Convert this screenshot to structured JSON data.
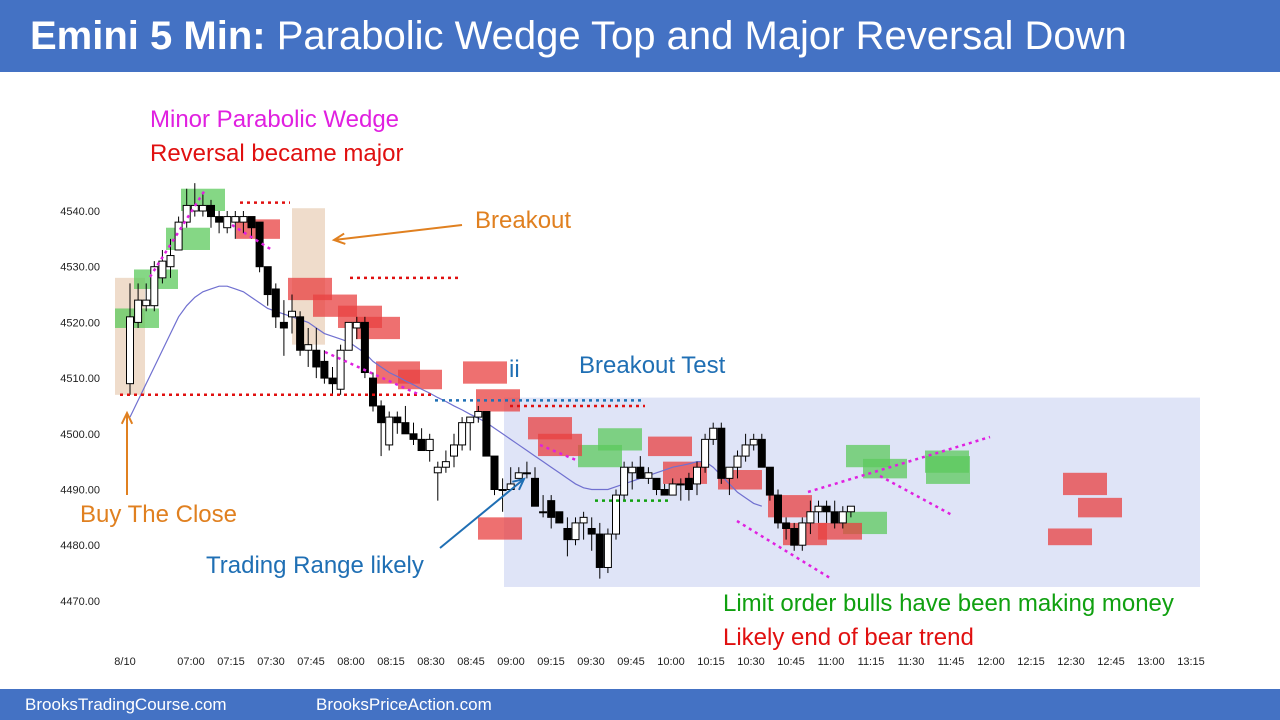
{
  "header": {
    "title_bold": "Emini 5 Min:",
    "title_rest": "Parabolic Wedge Top and Major Reversal Down",
    "bg_color": "#4472c4"
  },
  "footer": {
    "left": "BrooksTradingCourse.com",
    "right": "BrooksPriceAction.com"
  },
  "annotations": {
    "minor_wedge": "Minor Parabolic Wedge",
    "reversal_major": "Reversal became major",
    "breakout": "Breakout",
    "breakout_test": "Breakout Test",
    "ii": "ii",
    "buy_close": "Buy The Close",
    "trading_range": "Trading Range likely",
    "limit_bulls": "Limit order bulls have been making money",
    "end_bear": "Likely end of bear trend"
  },
  "colors": {
    "magenta": "#e020e0",
    "red": "#e01010",
    "orange": "#e08020",
    "blue": "#1f6fb4",
    "green": "#10a010",
    "ema": "#7070d0",
    "bull_bar_fill": "#ffffff",
    "bear_bar_fill": "#000000",
    "green_highlight": "#5cc95c",
    "red_highlight": "#e84040",
    "range_box": "#dfe4f7",
    "tan_box": "#efdccb"
  },
  "chart_data": {
    "type": "candlestick",
    "y_ticks": [
      "4540.00",
      "4530.00",
      "4520.00",
      "4510.00",
      "4500.00",
      "4490.00",
      "4480.00",
      "4470.00"
    ],
    "x_ticks": [
      "8/10",
      "07:00",
      "07:15",
      "07:30",
      "07:45",
      "08:00",
      "08:15",
      "08:30",
      "08:45",
      "09:00",
      "09:15",
      "09:30",
      "09:45",
      "10:00",
      "10:15",
      "10:30",
      "10:45",
      "11:00",
      "11:15",
      "11:30",
      "11:45",
      "12:00",
      "12:15",
      "12:30",
      "12:45",
      "13:00",
      "13:15"
    ],
    "ylim": [
      4468,
      4548
    ],
    "bars": [
      {
        "o": 4509,
        "h": 4527,
        "l": 4507,
        "c": 4521
      },
      {
        "o": 4520,
        "h": 4527,
        "l": 4519,
        "c": 4524
      },
      {
        "o": 4523,
        "h": 4527,
        "l": 4522,
        "c": 4524
      },
      {
        "o": 4523,
        "h": 4531,
        "l": 4522,
        "c": 4530
      },
      {
        "o": 4528,
        "h": 4533,
        "l": 4527,
        "c": 4531
      },
      {
        "o": 4530,
        "h": 4535,
        "l": 4528,
        "c": 4532
      },
      {
        "o": 4533,
        "h": 4539,
        "l": 4533,
        "c": 4538
      },
      {
        "o": 4538,
        "h": 4544,
        "l": 4537,
        "c": 4541
      },
      {
        "o": 4540,
        "h": 4545,
        "l": 4539,
        "c": 4541
      },
      {
        "o": 4540,
        "h": 4543,
        "l": 4539,
        "c": 4541
      },
      {
        "o": 4541,
        "h": 4542,
        "l": 4537,
        "c": 4539
      },
      {
        "o": 4539,
        "h": 4540,
        "l": 4536,
        "c": 4538
      },
      {
        "o": 4537,
        "h": 4540,
        "l": 4536,
        "c": 4539
      },
      {
        "o": 4538,
        "h": 4540,
        "l": 4535,
        "c": 4539
      },
      {
        "o": 4538,
        "h": 4540,
        "l": 4536,
        "c": 4539
      },
      {
        "o": 4539,
        "h": 4539,
        "l": 4535,
        "c": 4537
      },
      {
        "o": 4538,
        "h": 4538,
        "l": 4529,
        "c": 4530
      },
      {
        "o": 4530,
        "h": 4530,
        "l": 4523,
        "c": 4525
      },
      {
        "o": 4526,
        "h": 4527,
        "l": 4519,
        "c": 4521
      },
      {
        "o": 4520,
        "h": 4524,
        "l": 4514,
        "c": 4519
      },
      {
        "o": 4521,
        "h": 4525,
        "l": 4518,
        "c": 4522
      },
      {
        "o": 4521,
        "h": 4522,
        "l": 4514,
        "c": 4515
      },
      {
        "o": 4515,
        "h": 4519,
        "l": 4512,
        "c": 4516
      },
      {
        "o": 4515,
        "h": 4519,
        "l": 4510,
        "c": 4512
      },
      {
        "o": 4513,
        "h": 4515,
        "l": 4509,
        "c": 4510
      },
      {
        "o": 4510,
        "h": 4512,
        "l": 4507,
        "c": 4509
      },
      {
        "o": 4508,
        "h": 4516,
        "l": 4507,
        "c": 4515
      },
      {
        "o": 4515,
        "h": 4520,
        "l": 4515,
        "c": 4520
      },
      {
        "o": 4519,
        "h": 4521,
        "l": 4517,
        "c": 4520
      },
      {
        "o": 4520,
        "h": 4521,
        "l": 4510,
        "c": 4511
      },
      {
        "o": 4510,
        "h": 4511,
        "l": 4504,
        "c": 4505
      },
      {
        "o": 4505,
        "h": 4506,
        "l": 4496,
        "c": 4502
      },
      {
        "o": 4498,
        "h": 4504,
        "l": 4497,
        "c": 4503
      },
      {
        "o": 4503,
        "h": 4504,
        "l": 4500,
        "c": 4502
      },
      {
        "o": 4502,
        "h": 4505,
        "l": 4500,
        "c": 4500
      },
      {
        "o": 4500,
        "h": 4502,
        "l": 4498,
        "c": 4499
      },
      {
        "o": 4499,
        "h": 4501,
        "l": 4497,
        "c": 4497
      },
      {
        "o": 4497,
        "h": 4500,
        "l": 4495,
        "c": 4499
      },
      {
        "o": 4493,
        "h": 4495,
        "l": 4488,
        "c": 4494
      },
      {
        "o": 4494,
        "h": 4497,
        "l": 4493,
        "c": 4495
      },
      {
        "o": 4496,
        "h": 4500,
        "l": 4494,
        "c": 4498
      },
      {
        "o": 4498,
        "h": 4503,
        "l": 4497,
        "c": 4502
      },
      {
        "o": 4502,
        "h": 4503,
        "l": 4497,
        "c": 4503
      },
      {
        "o": 4503,
        "h": 4505,
        "l": 4502,
        "c": 4504
      },
      {
        "o": 4504,
        "h": 4504,
        "l": 4496,
        "c": 4496
      },
      {
        "o": 4496,
        "h": 4496,
        "l": 4489,
        "c": 4490
      },
      {
        "o": 4490,
        "h": 4492,
        "l": 4486,
        "c": 4490
      },
      {
        "o": 4490,
        "h": 4494,
        "l": 4490,
        "c": 4491
      },
      {
        "o": 4492,
        "h": 4494,
        "l": 4492,
        "c": 4493
      },
      {
        "o": 4493,
        "h": 4495,
        "l": 4492,
        "c": 4493
      },
      {
        "o": 4492,
        "h": 4494,
        "l": 4487,
        "c": 4487
      },
      {
        "o": 4486,
        "h": 4489,
        "l": 4485,
        "c": 4486
      },
      {
        "o": 4488,
        "h": 4489,
        "l": 4483,
        "c": 4485
      },
      {
        "o": 4486,
        "h": 4486,
        "l": 4484,
        "c": 4484
      },
      {
        "o": 4483,
        "h": 4485,
        "l": 4478,
        "c": 4481
      },
      {
        "o": 4481,
        "h": 4485,
        "l": 4480,
        "c": 4484
      },
      {
        "o": 4484,
        "h": 4486,
        "l": 4481,
        "c": 4485
      },
      {
        "o": 4483,
        "h": 4485,
        "l": 4479,
        "c": 4482
      },
      {
        "o": 4482,
        "h": 4484,
        "l": 4474,
        "c": 4476
      },
      {
        "o": 4476,
        "h": 4483,
        "l": 4475,
        "c": 4482
      },
      {
        "o": 4482,
        "h": 4490,
        "l": 4481,
        "c": 4489
      },
      {
        "o": 4489,
        "h": 4495,
        "l": 4488,
        "c": 4494
      },
      {
        "o": 4493,
        "h": 4495,
        "l": 4490,
        "c": 4494
      },
      {
        "o": 4494,
        "h": 4496,
        "l": 4492,
        "c": 4492
      },
      {
        "o": 4492,
        "h": 4494,
        "l": 4491,
        "c": 4493
      },
      {
        "o": 4492,
        "h": 4492,
        "l": 4489,
        "c": 4490
      },
      {
        "o": 4490,
        "h": 4491,
        "l": 4489,
        "c": 4489
      },
      {
        "o": 4489,
        "h": 4492,
        "l": 4489,
        "c": 4491
      },
      {
        "o": 4491,
        "h": 4492,
        "l": 4488,
        "c": 4491
      },
      {
        "o": 4492,
        "h": 4493,
        "l": 4488,
        "c": 4490
      },
      {
        "o": 4491,
        "h": 4495,
        "l": 4489,
        "c": 4494
      },
      {
        "o": 4494,
        "h": 4500,
        "l": 4493,
        "c": 4499
      },
      {
        "o": 4499,
        "h": 4502,
        "l": 4498,
        "c": 4501
      },
      {
        "o": 4501,
        "h": 4502,
        "l": 4491,
        "c": 4492
      },
      {
        "o": 4492,
        "h": 4494,
        "l": 4489,
        "c": 4494
      },
      {
        "o": 4494,
        "h": 4497,
        "l": 4492,
        "c": 4496
      },
      {
        "o": 4496,
        "h": 4500,
        "l": 4495,
        "c": 4498
      },
      {
        "o": 4498,
        "h": 4500,
        "l": 4497,
        "c": 4499
      },
      {
        "o": 4499,
        "h": 4500,
        "l": 4494,
        "c": 4494
      },
      {
        "o": 4494,
        "h": 4494,
        "l": 4488,
        "c": 4489
      },
      {
        "o": 4489,
        "h": 4490,
        "l": 4483,
        "c": 4484
      },
      {
        "o": 4484,
        "h": 4485,
        "l": 4481,
        "c": 4483
      },
      {
        "o": 4483,
        "h": 4484,
        "l": 4479,
        "c": 4480
      },
      {
        "o": 4480,
        "h": 4485,
        "l": 4479,
        "c": 4484
      },
      {
        "o": 4484,
        "h": 4488,
        "l": 4482,
        "c": 4486
      },
      {
        "o": 4486,
        "h": 4488,
        "l": 4484,
        "c": 4487
      },
      {
        "o": 4487,
        "h": 4488,
        "l": 4484,
        "c": 4486
      },
      {
        "o": 4486,
        "h": 4488,
        "l": 4483,
        "c": 4484
      },
      {
        "o": 4484,
        "h": 4487,
        "l": 4483,
        "c": 4486
      },
      {
        "o": 4486,
        "h": 4487,
        "l": 4485,
        "c": 4487
      }
    ],
    "ema": [
      4503,
      4506,
      4509,
      4512,
      4515,
      4518,
      4521,
      4523,
      4524.5,
      4525.5,
      4526,
      4526.5,
      4526.5,
      4526,
      4525.5,
      4524.5,
      4523.5,
      4522.5,
      4522,
      4521.5,
      4521,
      4520.5,
      4520,
      4519,
      4518,
      4517.5,
      4517,
      4516.5,
      4515.5,
      4514.5,
      4513,
      4512,
      4511,
      4510.3,
      4509.5,
      4508.8,
      4508,
      4507.3,
      4506.5,
      4505.8,
      4505,
      4504.3,
      4503.5,
      4502.8,
      4502,
      4501,
      4500,
      4499,
      4498,
      4497,
      4496,
      4495,
      4494,
      4493,
      4492,
      4491,
      4490.3,
      4490,
      4490,
      4490,
      4490.5,
      4491,
      4491.5,
      4492,
      4492.5,
      4493,
      4493.5,
      4494,
      4494.3,
      4494.6,
      4495,
      4495,
      4494,
      4492.5,
      4491,
      4489.5,
      4488.5,
      4487.5,
      4487
    ],
    "levels": {
      "buy_close_line": 4507,
      "breakout_test_line": 4506,
      "upper_red_line": 4530,
      "top_red_line": 4541,
      "range_top": 4506.5,
      "range_bottom": 4472.5
    }
  }
}
